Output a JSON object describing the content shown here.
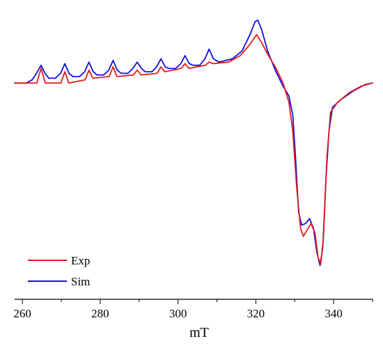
{
  "chart_data": {
    "type": "line",
    "title": "",
    "xlabel": "mT",
    "ylabel": "",
    "xlim": [
      258,
      350
    ],
    "ylim": [
      -1.15,
      0.48
    ],
    "xticks": [
      260,
      280,
      300,
      320,
      340
    ],
    "grid": false,
    "legend_position": "bottom-left",
    "series": [
      {
        "name": "Exp",
        "color": "#e41a1c",
        "points": [
          [
            258,
            0.0
          ],
          [
            262,
            0.0
          ],
          [
            263.7,
            0.0
          ],
          [
            264.8,
            0.09
          ],
          [
            265.9,
            0.0
          ],
          [
            269.9,
            0.0
          ],
          [
            270.9,
            0.07
          ],
          [
            271.9,
            0.0
          ],
          [
            276.1,
            0.02
          ],
          [
            277.1,
            0.08
          ],
          [
            278.1,
            0.03
          ],
          [
            282.3,
            0.04
          ],
          [
            283.3,
            0.1
          ],
          [
            284.3,
            0.04
          ],
          [
            288.5,
            0.05
          ],
          [
            289.5,
            0.08
          ],
          [
            290.5,
            0.05
          ],
          [
            294.6,
            0.06
          ],
          [
            295.6,
            0.1
          ],
          [
            296.6,
            0.07
          ],
          [
            300.8,
            0.09
          ],
          [
            301.8,
            0.12
          ],
          [
            302.8,
            0.09
          ],
          [
            307.0,
            0.11
          ],
          [
            308.0,
            0.13
          ],
          [
            309.0,
            0.12
          ],
          [
            313,
            0.13
          ],
          [
            316,
            0.17
          ],
          [
            318.5,
            0.24
          ],
          [
            320.2,
            0.3
          ],
          [
            321.5,
            0.25
          ],
          [
            323,
            0.18
          ],
          [
            325,
            0.1
          ],
          [
            327,
            0.0
          ],
          [
            328.5,
            -0.12
          ],
          [
            329.5,
            -0.3
          ],
          [
            330.5,
            -0.65
          ],
          [
            331.5,
            -0.9
          ],
          [
            332.2,
            -0.95
          ],
          [
            333.2,
            -0.91
          ],
          [
            334.2,
            -0.87
          ],
          [
            335.2,
            -0.93
          ],
          [
            336.0,
            -1.08
          ],
          [
            336.7,
            -1.12
          ],
          [
            337.4,
            -0.95
          ],
          [
            338.3,
            -0.45
          ],
          [
            339.2,
            -0.18
          ],
          [
            341,
            -0.12
          ],
          [
            344,
            -0.06
          ],
          [
            347,
            -0.02
          ],
          [
            350,
            0.0
          ]
        ]
      },
      {
        "name": "Sim",
        "color": "#1010dd",
        "points": [
          [
            258,
            0.0
          ],
          [
            261,
            0.0
          ],
          [
            262.5,
            0.02
          ],
          [
            263.6,
            0.06
          ],
          [
            264.8,
            0.11
          ],
          [
            265.8,
            0.06
          ],
          [
            266.8,
            0.03
          ],
          [
            268.5,
            0.03
          ],
          [
            269.8,
            0.06
          ],
          [
            270.9,
            0.12
          ],
          [
            272.0,
            0.06
          ],
          [
            273.0,
            0.04
          ],
          [
            274.7,
            0.04
          ],
          [
            276.0,
            0.07
          ],
          [
            277.1,
            0.13
          ],
          [
            278.2,
            0.07
          ],
          [
            279.2,
            0.05
          ],
          [
            280.9,
            0.05
          ],
          [
            282.2,
            0.08
          ],
          [
            283.3,
            0.14
          ],
          [
            284.4,
            0.08
          ],
          [
            285.4,
            0.06
          ],
          [
            287.1,
            0.06
          ],
          [
            288.4,
            0.09
          ],
          [
            289.5,
            0.13
          ],
          [
            290.6,
            0.09
          ],
          [
            291.6,
            0.07
          ],
          [
            293.3,
            0.07
          ],
          [
            294.5,
            0.1
          ],
          [
            295.6,
            0.15
          ],
          [
            296.7,
            0.1
          ],
          [
            297.7,
            0.09
          ],
          [
            299.4,
            0.09
          ],
          [
            300.7,
            0.12
          ],
          [
            301.8,
            0.17
          ],
          [
            302.9,
            0.12
          ],
          [
            303.9,
            0.11
          ],
          [
            305.6,
            0.11
          ],
          [
            306.9,
            0.15
          ],
          [
            308.0,
            0.21
          ],
          [
            309.1,
            0.15
          ],
          [
            310.5,
            0.13
          ],
          [
            314,
            0.15
          ],
          [
            316.5,
            0.2
          ],
          [
            318.5,
            0.3
          ],
          [
            319.8,
            0.38
          ],
          [
            320.5,
            0.39
          ],
          [
            321.5,
            0.33
          ],
          [
            323,
            0.2
          ],
          [
            325,
            0.08
          ],
          [
            327,
            -0.02
          ],
          [
            328.5,
            -0.08
          ],
          [
            329.5,
            -0.2
          ],
          [
            330.3,
            -0.5
          ],
          [
            331.0,
            -0.8
          ],
          [
            331.8,
            -0.88
          ],
          [
            332.8,
            -0.87
          ],
          [
            333.8,
            -0.84
          ],
          [
            334.8,
            -0.9
          ],
          [
            335.7,
            -1.05
          ],
          [
            336.5,
            -1.13
          ],
          [
            337.2,
            -1.02
          ],
          [
            338.0,
            -0.6
          ],
          [
            338.8,
            -0.3
          ],
          [
            339.7,
            -0.15
          ],
          [
            342,
            -0.1
          ],
          [
            345,
            -0.05
          ],
          [
            348,
            -0.01
          ],
          [
            350,
            0.0
          ]
        ]
      }
    ]
  }
}
